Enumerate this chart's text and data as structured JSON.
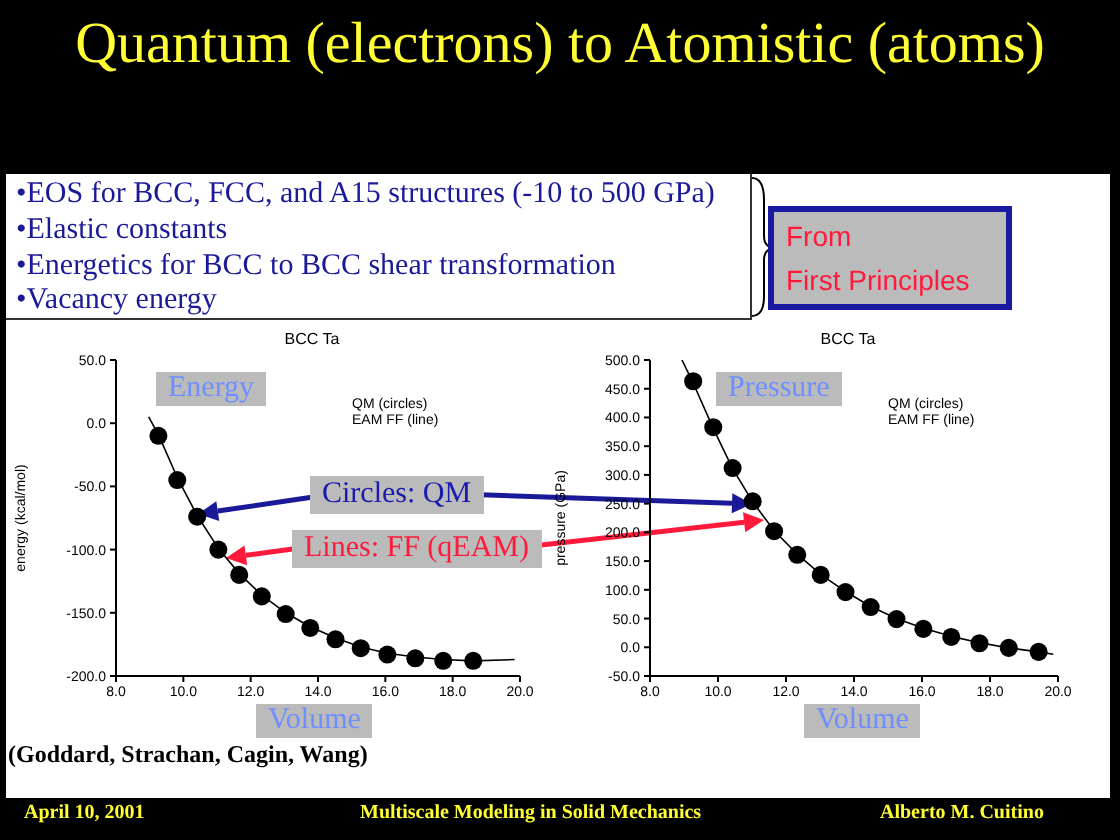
{
  "chart_data": [
    {
      "type": "scatter",
      "title": "BCC Ta",
      "xlabel": null,
      "ylabel": "energy (kcal/mol)",
      "xlim": [
        8,
        20
      ],
      "xticks": [
        {
          "value": 8,
          "label": "8.0"
        },
        {
          "value": 10,
          "label": "10.0"
        },
        {
          "value": 12,
          "label": "12.0"
        },
        {
          "value": 14,
          "label": "14.0"
        },
        {
          "value": 16,
          "label": "16.0"
        },
        {
          "value": 18,
          "label": "18.0"
        },
        {
          "value": 20,
          "label": "20.0"
        }
      ],
      "ylim": [
        -200,
        50
      ],
      "yticks": [
        {
          "value": -200,
          "label": "-200.0"
        },
        {
          "value": -150,
          "label": "-150.0"
        },
        {
          "value": -100,
          "label": "-100.0"
        },
        {
          "value": -50,
          "label": "-50.0"
        },
        {
          "value": 0,
          "label": "0.0"
        },
        {
          "value": 50,
          "label": "50.0"
        }
      ],
      "series": [
        {
          "color": "#000000",
          "marker": "circle",
          "x": [
            9.26,
            9.82,
            10.41,
            11.04,
            11.66,
            12.33,
            13.04,
            13.77,
            14.52,
            15.27,
            16.06,
            16.89,
            17.72,
            18.61
          ],
          "values": [
            -10,
            -45,
            -74,
            -100,
            -120,
            -137,
            -151,
            -162,
            -171,
            -178,
            -183,
            -186,
            -188,
            -188
          ]
        },
        {
          "type": "line",
          "color": "#000000",
          "marker": "none",
          "line_style": "solid",
          "x": [
            8.97,
            9.26,
            9.82,
            10.41,
            11.04,
            11.66,
            12.33,
            13.04,
            13.77,
            14.52,
            15.27,
            16.06,
            16.89,
            17.72,
            18.61,
            19.84
          ],
          "values": [
            5,
            -9,
            -43,
            -73,
            -99,
            -119,
            -136,
            -150,
            -161,
            -170,
            -177,
            -182,
            -185,
            -187,
            -188,
            -187
          ]
        }
      ],
      "annotations": [
        "Quantum (electrons) to Atomistic (atoms)",
        "•EOS for BCC, FCC, and A15 structures (-10 to 500 GPa)",
        "•Elastic constants",
        "•Energetics for BCC to BCC shear transformation",
        "•Vacancy energy",
        "From\nFirst Principles",
        "Energy",
        "Volume",
        "Circles: QM",
        "Lines: FF (qEAM)",
        "QM (circles)\nEAM FF (line)",
        "(Goddard, Strachan, Cagin, Wang)",
        "April 10, 2001",
        "Multiscale Modeling in Solid Mechanics",
        "Alberto M. Cuitino"
      ]
    },
    {
      "type": "scatter",
      "title": "BCC Ta",
      "ylabel": "pressure (GPa)",
      "xlim": [
        8,
        20
      ],
      "xticks": [
        {
          "value": 8,
          "label": "8.0"
        },
        {
          "value": 10,
          "label": "10.0"
        },
        {
          "value": 12,
          "label": "12.0"
        },
        {
          "value": 14,
          "label": "14.0"
        },
        {
          "value": 16,
          "label": "16.0"
        },
        {
          "value": 18,
          "label": "18.0"
        },
        {
          "value": 20,
          "label": "20.0"
        }
      ],
      "ylim": [
        -50,
        500
      ],
      "yticks": [
        {
          "value": -50,
          "label": "-50.0"
        },
        {
          "value": 0,
          "label": "0.0"
        },
        {
          "value": 50,
          "label": "50.0"
        },
        {
          "value": 100,
          "label": "100.0"
        },
        {
          "value": 150,
          "label": "150.0"
        },
        {
          "value": 200,
          "label": "200.0"
        },
        {
          "value": 250,
          "label": "250.0"
        },
        {
          "value": 300,
          "label": "300.0"
        },
        {
          "value": 350,
          "label": "350.0"
        },
        {
          "value": 400,
          "label": "400.0"
        },
        {
          "value": 450,
          "label": "450.0"
        },
        {
          "value": 500,
          "label": "500.0"
        }
      ],
      "series": [
        {
          "color": "#000000",
          "marker": "circle",
          "x": [
            9.27,
            9.86,
            10.43,
            11.02,
            11.65,
            12.33,
            13.02,
            13.75,
            14.49,
            15.25,
            16.04,
            16.86,
            17.69,
            18.55,
            19.43
          ],
          "values": [
            463,
            383,
            312,
            254,
            202,
            161,
            126,
            96,
            70,
            49,
            32,
            18,
            7,
            -1,
            -8
          ]
        },
        {
          "type": "line",
          "color": "#000000",
          "marker": "none",
          "line_style": "solid",
          "x": [
            8.94,
            9.27,
            9.86,
            10.43,
            11.02,
            11.65,
            12.33,
            13.02,
            13.75,
            14.49,
            15.25,
            16.04,
            16.86,
            17.69,
            18.55,
            19.43,
            19.86
          ],
          "values": [
            500,
            460,
            381,
            311,
            253,
            203,
            162,
            127,
            97,
            71,
            50,
            33,
            19,
            8,
            -1,
            -8,
            -12
          ]
        }
      ],
      "annotations": [
        "Pressure",
        "Volume",
        "QM (circles)\nEAM FF (line)"
      ]
    }
  ]
}
